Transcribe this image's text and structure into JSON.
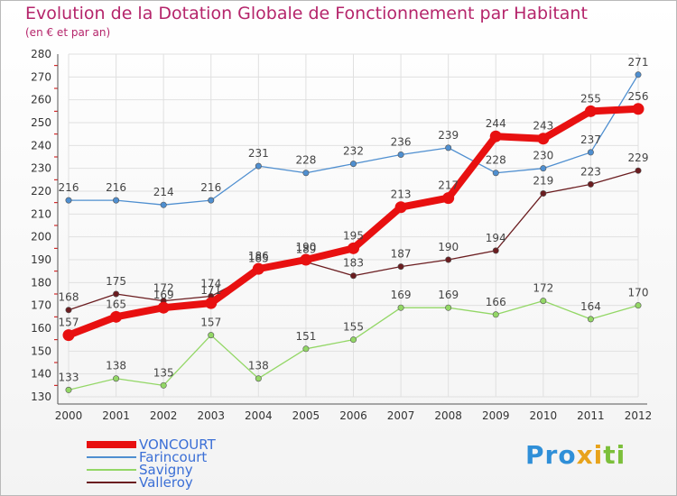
{
  "title": "Evolution de la Dotation Globale de Fonctionnement par Habitant",
  "subtitle": "(en € et par an)",
  "brand": "Proxiti",
  "chart_data": {
    "type": "line",
    "title": "Evolution de la Dotation Globale de Fonctionnement par Habitant",
    "ylabel": "(en € et par an)",
    "xlabel": "",
    "ylim": [
      130,
      280
    ],
    "yticks": [
      130,
      140,
      150,
      160,
      170,
      180,
      190,
      200,
      210,
      220,
      230,
      240,
      250,
      260,
      270,
      280
    ],
    "categories": [
      "2000",
      "2001",
      "2002",
      "2003",
      "2004",
      "2005",
      "2006",
      "2007",
      "2008",
      "2009",
      "2010",
      "2011",
      "2012"
    ],
    "series": [
      {
        "name": "VONCOURT",
        "color": "#e81010",
        "values": [
          157,
          165,
          169,
          171,
          186,
          190,
          195,
          213,
          217,
          244,
          243,
          255,
          256
        ]
      },
      {
        "name": "Farincourt",
        "color": "#4f8fd0",
        "values": [
          216,
          216,
          214,
          216,
          231,
          228,
          232,
          236,
          239,
          228,
          230,
          237,
          271
        ]
      },
      {
        "name": "Savigny",
        "color": "#93d766",
        "values": [
          133,
          138,
          135,
          157,
          138,
          151,
          155,
          169,
          169,
          166,
          172,
          164,
          170
        ]
      },
      {
        "name": "Valleroy",
        "color": "#6b1d20",
        "values": [
          168,
          175,
          172,
          174,
          185,
          189,
          183,
          187,
          190,
          194,
          219,
          223,
          229
        ]
      }
    ]
  }
}
